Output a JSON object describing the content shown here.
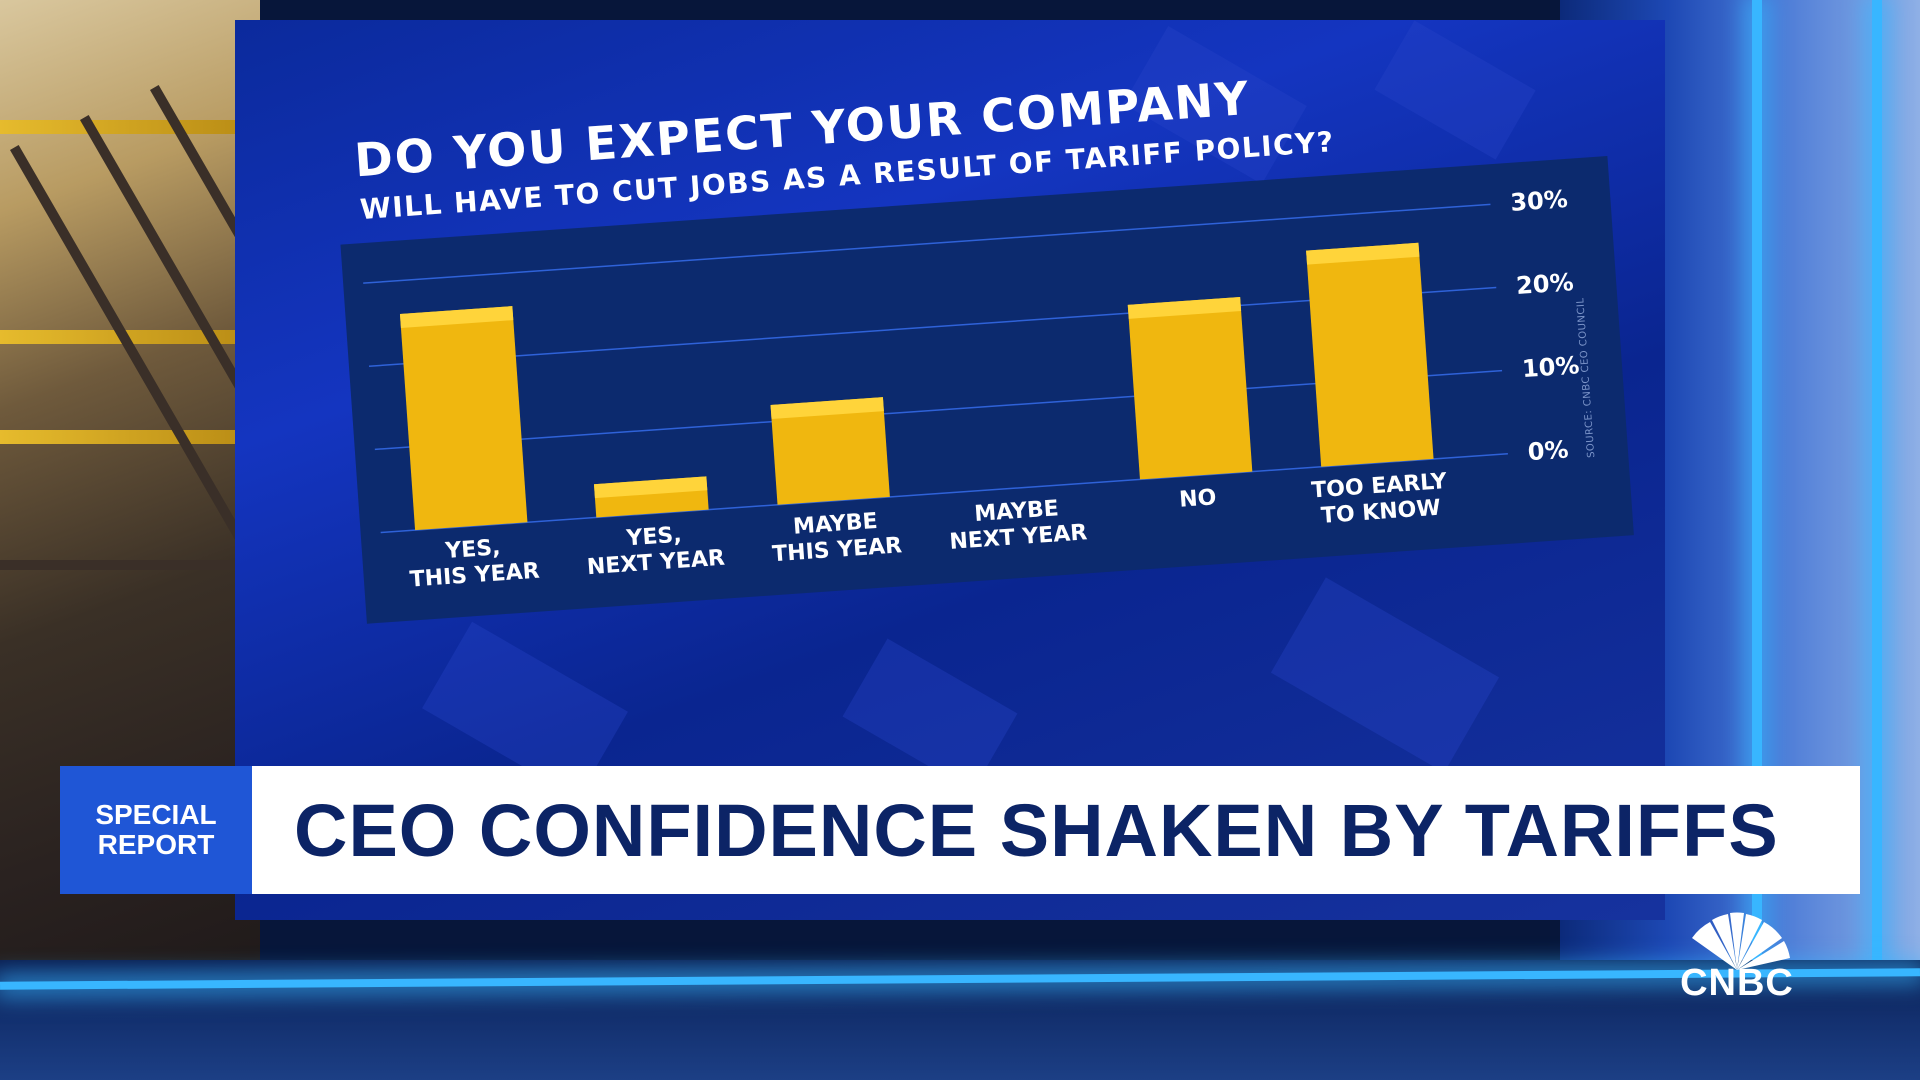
{
  "chart_data": {
    "type": "bar",
    "title": "DO YOU EXPECT YOUR COMPANY",
    "subtitle": "WILL HAVE TO CUT JOBS AS A RESULT OF TARIFF POLICY?",
    "categories": [
      [
        "YES,",
        "THIS YEAR"
      ],
      [
        "YES,",
        "NEXT YEAR"
      ],
      [
        "MAYBE",
        "THIS YEAR"
      ],
      [
        "MAYBE",
        "NEXT YEAR"
      ],
      [
        "NO"
      ],
      [
        "TOO EARLY",
        "TO KNOW"
      ]
    ],
    "values": [
      26,
      4,
      12,
      0,
      21,
      26
    ],
    "ylim": [
      0,
      30
    ],
    "y_ticks": [
      "0%",
      "10%",
      "20%",
      "30%"
    ],
    "y_tick_values": [
      0,
      10,
      20,
      30
    ],
    "y_axis_side": "right",
    "grid": true,
    "bar_color": "#f0b70f",
    "source": "SOURCE: CNBC CEO COUNCIL"
  },
  "lower_third": {
    "tag_line1": "SPECIAL",
    "tag_line2": "REPORT",
    "headline": "CEO CONFIDENCE SHAKEN BY TARIFFS"
  },
  "logo": {
    "text": "CNBC",
    "icon": "peacock-icon"
  },
  "colors": {
    "panel": "#0c2a6e",
    "grid": "#2f62d8",
    "headline_text": "#0c2466",
    "tag_bg": "#1f56d6"
  }
}
